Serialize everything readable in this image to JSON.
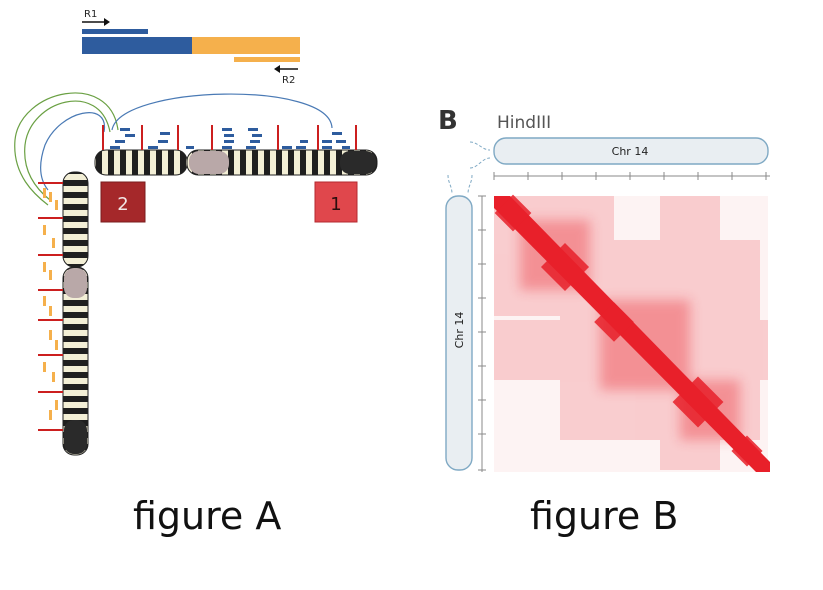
{
  "figure_a": {
    "caption": "figure A",
    "read1_label": "R1",
    "read2_label": "R2",
    "region_2_label": "2",
    "region_1_label": "1",
    "colors": {
      "read1": "#2e5c9e",
      "read2": "#f5b04c",
      "cut_site": "#cc1f1f",
      "region_2": "#a5282a",
      "region_1": "#e0474c",
      "arc_green": "#6aa043",
      "arc_blue": "#4a7ab5"
    }
  },
  "figure_b": {
    "caption": "figure B",
    "panel_letter": "B",
    "enzyme_label": "HindIII",
    "top_chromosome_label": "Chr 14",
    "left_chromosome_label": "Chr 14",
    "colors": {
      "heatmap": "#e8202a",
      "chromosome_fill": "#e9eef2",
      "chromosome_stroke": "#7fa9c4"
    }
  }
}
